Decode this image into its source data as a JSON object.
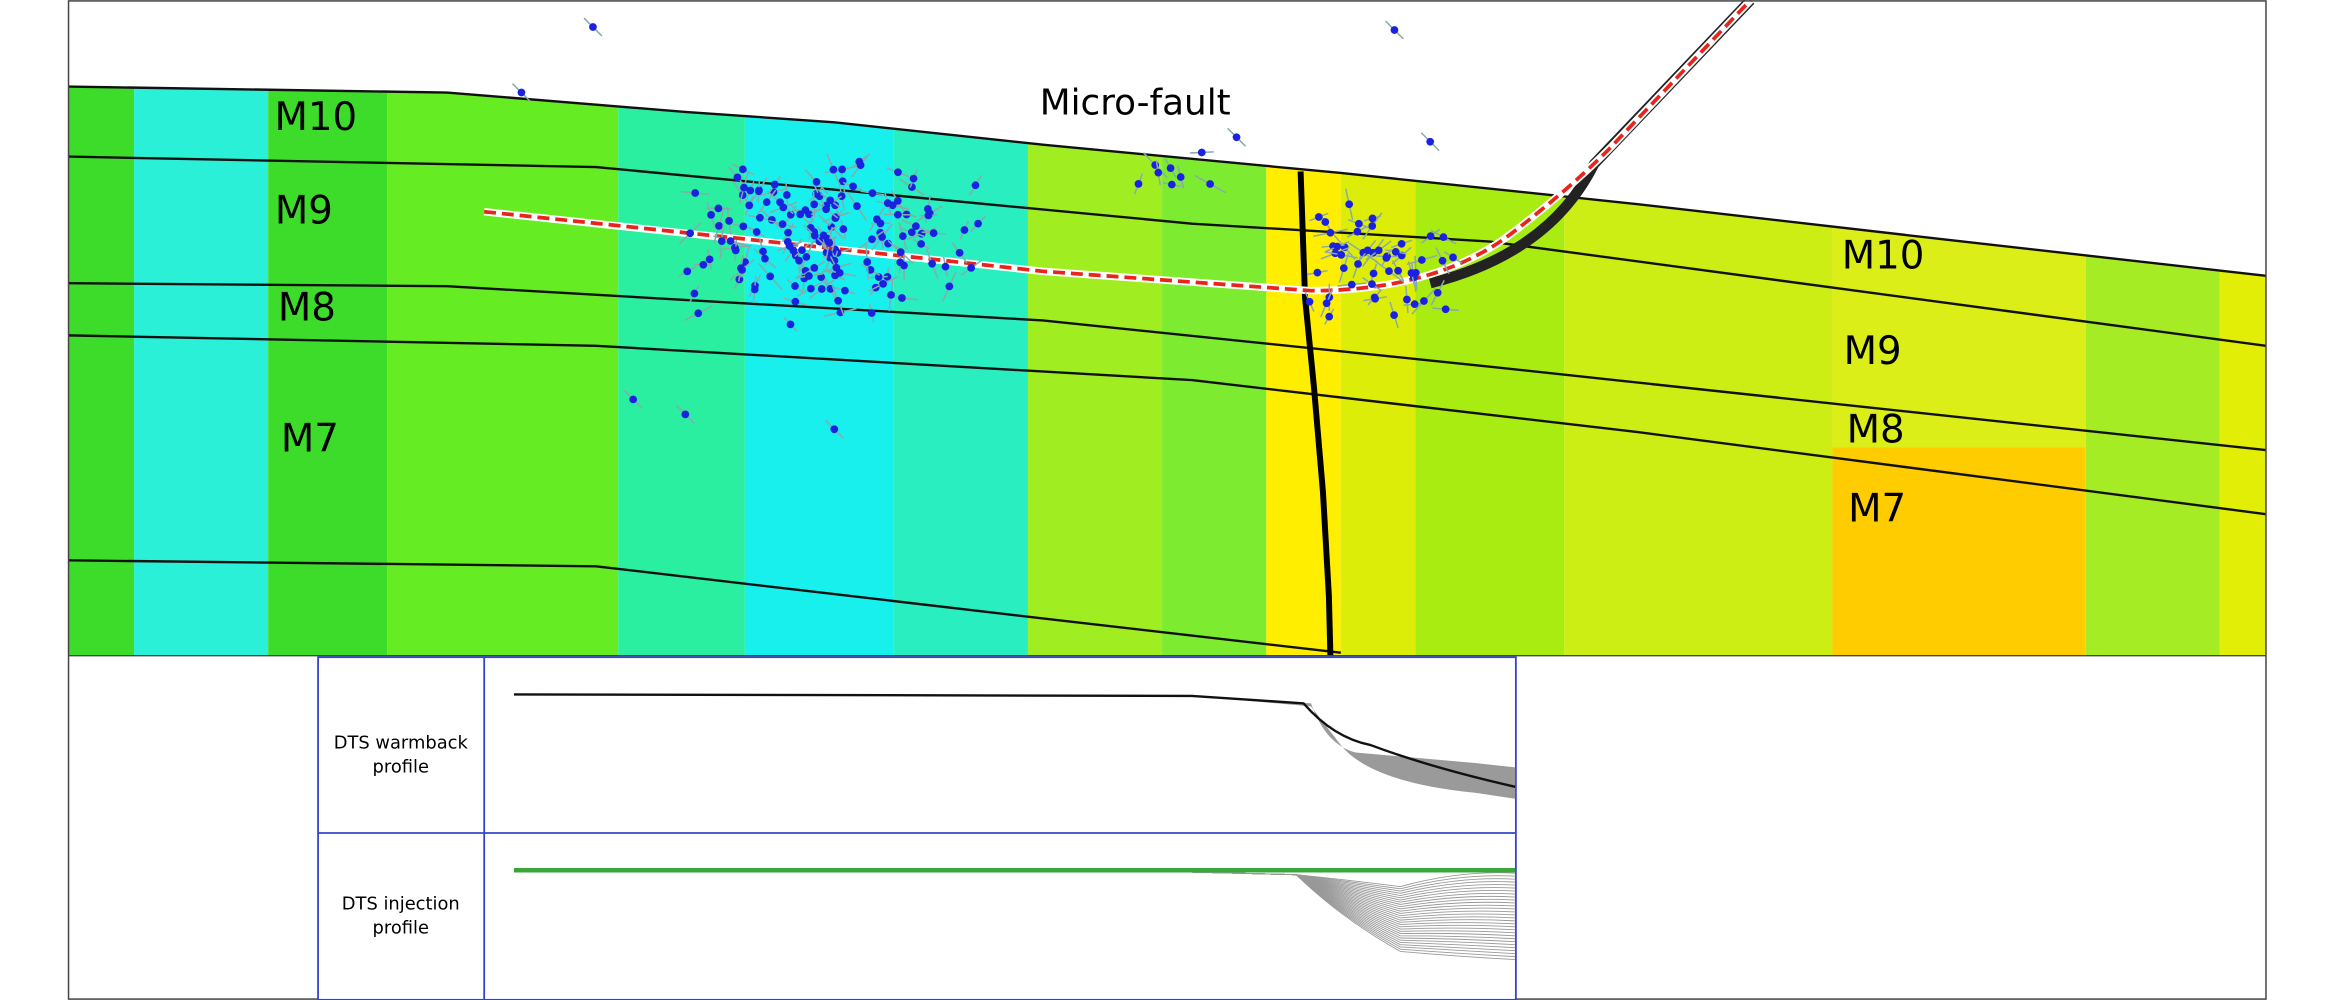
{
  "annotation": "Micro-fault",
  "left_labels": [
    "M10",
    "M9",
    "M8",
    "M7"
  ],
  "right_labels": [
    "M10",
    "M9",
    "M8",
    "M7"
  ],
  "panels": [
    {
      "label_lines": [
        "DTS warmback",
        "profile"
      ]
    },
    {
      "label_lines": [
        "DTS injection",
        "profile"
      ]
    }
  ]
}
